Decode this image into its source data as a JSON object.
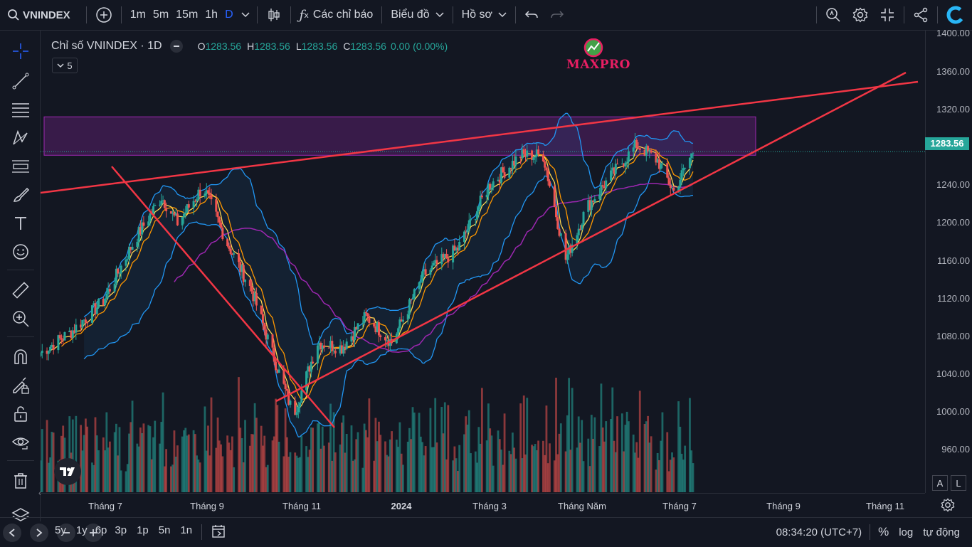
{
  "topbar": {
    "symbol": "VNINDEX",
    "intervals": [
      "1m",
      "5m",
      "15m",
      "1h",
      "D"
    ],
    "active_interval": "D",
    "indicators_label": "Các chỉ báo",
    "chart_type_label": "Biểu đồ",
    "profile_label": "Hồ sơ"
  },
  "legend": {
    "title": "Chỉ số VNINDEX · 1D",
    "o_label": "O",
    "o_value": "1283.56",
    "h_label": "H",
    "h_value": "1283.56",
    "l_label": "L",
    "l_value": "1283.56",
    "c_label": "C",
    "c_value": "1283.56",
    "change": "0.00 (0.00%)",
    "indicator_count": "5"
  },
  "watermark": {
    "text": "MAXPRO"
  },
  "price_axis": {
    "labels": [
      "1400.00",
      "1360.00",
      "1320.00",
      "1240.00",
      "1200.00",
      "1160.00",
      "1120.00",
      "1080.00",
      "1040.00",
      "1000.00",
      "960.00"
    ],
    "current_price": "1283.56",
    "current_color": "#26a69a"
  },
  "time_axis": {
    "labels": [
      "Tháng 7",
      "Tháng 9",
      "Tháng 11",
      "2024",
      "Tháng 3",
      "Tháng Năm",
      "Tháng 7",
      "Tháng 9",
      "Tháng 11"
    ]
  },
  "axis_buttons": {
    "auto": "A",
    "log": "L"
  },
  "bottombar": {
    "ranges": [
      "5y",
      "1y",
      "6p",
      "3p",
      "1p",
      "5n",
      "1n"
    ],
    "time": "08:34:20 (UTC+7)",
    "percent": "%",
    "log": "log",
    "auto": "tự động"
  },
  "colors": {
    "up": "#26a69a",
    "down": "#ef5350",
    "bb": "#2196f3",
    "ma_fast": "#ffd54f",
    "ma_mid": "#ff9800",
    "ma_slow": "#9c27b0",
    "trendline": "#f23645",
    "zone": "#9c27b0"
  },
  "chart_data": {
    "type": "candlestick",
    "symbol": "VNINDEX",
    "interval": "1D",
    "y_range": [
      955,
      1400
    ],
    "x_range": [
      "2023-06-01",
      "2024-12-01"
    ],
    "close_path": [
      [
        "2023-06-01",
        1090
      ],
      [
        "2023-06-20",
        1110
      ],
      [
        "2023-07-10",
        1140
      ],
      [
        "2023-07-30",
        1200
      ],
      [
        "2023-08-15",
        1240
      ],
      [
        "2023-08-25",
        1215
      ],
      [
        "2023-09-10",
        1250
      ],
      [
        "2023-09-25",
        1195
      ],
      [
        "2023-10-10",
        1150
      ],
      [
        "2023-10-25",
        1080
      ],
      [
        "2023-11-05",
        1030
      ],
      [
        "2023-11-20",
        1100
      ],
      [
        "2023-12-05",
        1095
      ],
      [
        "2023-12-20",
        1125
      ],
      [
        "2024-01-05",
        1100
      ],
      [
        "2024-01-25",
        1165
      ],
      [
        "2024-02-15",
        1190
      ],
      [
        "2024-03-05",
        1250
      ],
      [
        "2024-03-25",
        1280
      ],
      [
        "2024-04-08",
        1280
      ],
      [
        "2024-04-22",
        1180
      ],
      [
        "2024-05-05",
        1230
      ],
      [
        "2024-05-20",
        1260
      ],
      [
        "2024-06-05",
        1290
      ],
      [
        "2024-06-18",
        1275
      ],
      [
        "2024-06-28",
        1245
      ],
      [
        "2024-07-10",
        1283.56
      ]
    ],
    "resistance_zone": [
      1280,
      1317
    ],
    "volume_panel": true
  }
}
